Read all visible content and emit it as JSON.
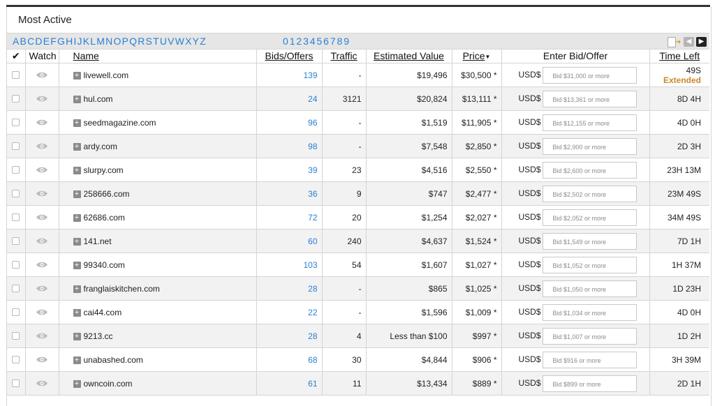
{
  "title": "Most Active",
  "alphabet": [
    "A",
    "B",
    "C",
    "D",
    "E",
    "F",
    "G",
    "H",
    "I",
    "J",
    "K",
    "L",
    "M",
    "N",
    "O",
    "P",
    "Q",
    "R",
    "S",
    "T",
    "U",
    "V",
    "W",
    "X",
    "Y",
    "Z"
  ],
  "digits": [
    "0",
    "1",
    "2",
    "3",
    "4",
    "5",
    "6",
    "7",
    "8",
    "9"
  ],
  "headers": {
    "check": "✔",
    "watch": "Watch",
    "name": "Name",
    "bids": "Bids/Offers",
    "traffic": "Traffic",
    "estimated": "Estimated Value",
    "price": "Price",
    "enter_bid": "Enter Bid/Offer",
    "time_left": "Time Left"
  },
  "currency_label": "USD$",
  "rows": [
    {
      "name": "livewell.com",
      "bids": "139",
      "traffic": "-",
      "estimated": "$19,496",
      "price": "$30,500 *",
      "bid_placeholder": "Bid $31,000 or more",
      "time": "49S",
      "time_note": "Extended"
    },
    {
      "name": "hul.com",
      "bids": "24",
      "traffic": "3121",
      "estimated": "$20,824",
      "price": "$13,111 *",
      "bid_placeholder": "Bid $13,361 or more",
      "time": "8D 4H"
    },
    {
      "name": "seedmagazine.com",
      "bids": "96",
      "traffic": "-",
      "estimated": "$1,519",
      "price": "$11,905 *",
      "bid_placeholder": "Bid $12,155 or more",
      "time": "4D 0H"
    },
    {
      "name": "ardy.com",
      "bids": "98",
      "traffic": "-",
      "estimated": "$7,548",
      "price": "$2,850 *",
      "bid_placeholder": "Bid $2,900 or more",
      "time": "2D 3H"
    },
    {
      "name": "slurpy.com",
      "bids": "39",
      "traffic": "23",
      "estimated": "$4,516",
      "price": "$2,550 *",
      "bid_placeholder": "Bid $2,600 or more",
      "time": "23H 13M"
    },
    {
      "name": "258666.com",
      "bids": "36",
      "traffic": "9",
      "estimated": "$747",
      "price": "$2,477 *",
      "bid_placeholder": "Bid $2,502 or more",
      "time": "23M 49S"
    },
    {
      "name": "62686.com",
      "bids": "72",
      "traffic": "20",
      "estimated": "$1,254",
      "price": "$2,027 *",
      "bid_placeholder": "Bid $2,052 or more",
      "time": "34M 49S"
    },
    {
      "name": "141.net",
      "bids": "60",
      "traffic": "240",
      "estimated": "$4,637",
      "price": "$1,524 *",
      "bid_placeholder": "Bid $1,549 or more",
      "time": "7D 1H"
    },
    {
      "name": "99340.com",
      "bids": "103",
      "traffic": "54",
      "estimated": "$1,607",
      "price": "$1,027 *",
      "bid_placeholder": "Bid $1,052 or more",
      "time": "1H 37M"
    },
    {
      "name": "franglaiskitchen.com",
      "bids": "28",
      "traffic": "-",
      "estimated": "$865",
      "price": "$1,025 *",
      "bid_placeholder": "Bid $1,050 or more",
      "time": "1D 23H"
    },
    {
      "name": "cai44.com",
      "bids": "22",
      "traffic": "-",
      "estimated": "$1,596",
      "price": "$1,009 *",
      "bid_placeholder": "Bid $1,034 or more",
      "time": "4D 0H"
    },
    {
      "name": "9213.cc",
      "bids": "28",
      "traffic": "4",
      "estimated": "Less than $100",
      "price": "$997 *",
      "bid_placeholder": "Bid $1,007 or more",
      "time": "1D 2H"
    },
    {
      "name": "unabashed.com",
      "bids": "68",
      "traffic": "30",
      "estimated": "$4,844",
      "price": "$906 *",
      "bid_placeholder": "Bid $916 or more",
      "time": "3H 39M"
    },
    {
      "name": "owncoin.com",
      "bids": "61",
      "traffic": "11",
      "estimated": "$13,434",
      "price": "$889 *",
      "bid_placeholder": "Bid $899 or more",
      "time": "2D 1H"
    }
  ]
}
